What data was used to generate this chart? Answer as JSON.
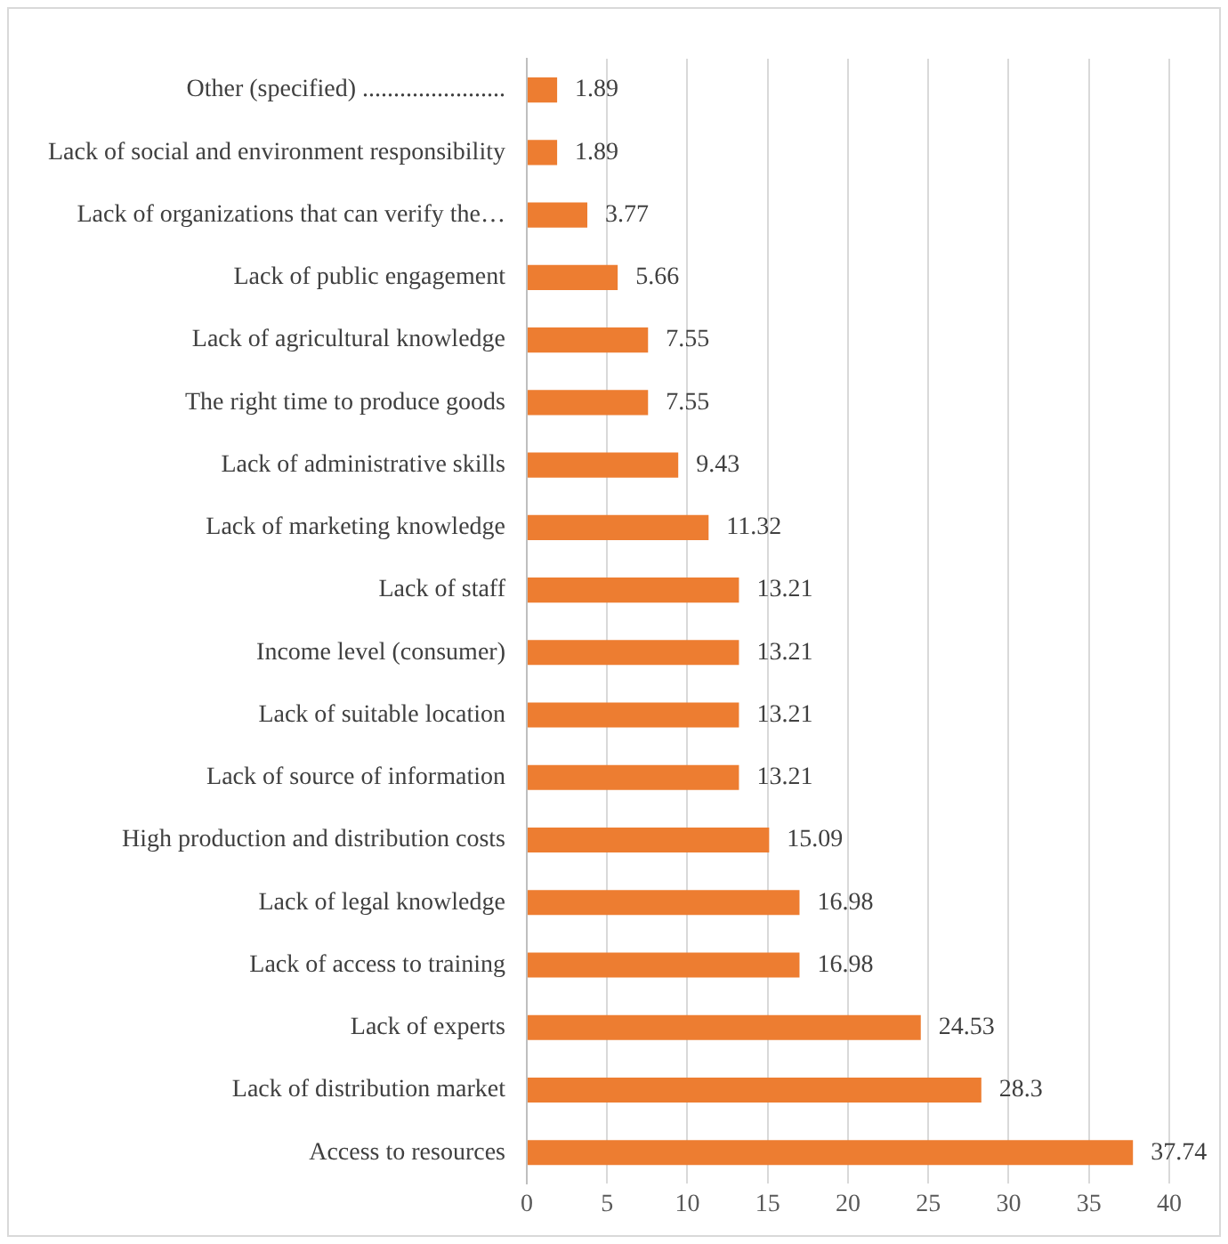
{
  "chart_data": {
    "type": "bar",
    "orientation": "horizontal",
    "categories": [
      "Other (specified) .......................",
      "Lack of social and environment responsibility",
      "Lack of organizations that can verify the…",
      "Lack of public engagement",
      "Lack of agricultural knowledge",
      "The right time to produce goods",
      "Lack of administrative skills",
      "Lack of marketing knowledge",
      "Lack of staff",
      "Income level (consumer)",
      "Lack of suitable location",
      "Lack of source of information",
      "High production and distribution costs",
      "Lack of legal knowledge",
      "Lack of access to training",
      "Lack of experts",
      "Lack of distribution market",
      "Access to resources"
    ],
    "values": [
      1.89,
      1.89,
      3.77,
      5.66,
      7.55,
      7.55,
      9.43,
      11.32,
      13.21,
      13.21,
      13.21,
      13.21,
      15.09,
      16.98,
      16.98,
      24.53,
      28.3,
      37.74
    ],
    "color": "#ed7d31",
    "xlim": [
      0,
      40
    ],
    "xticks": [
      0,
      5,
      10,
      15,
      20,
      25,
      30,
      35,
      40
    ],
    "grid": "x",
    "data_labels": true,
    "legend": false
  }
}
